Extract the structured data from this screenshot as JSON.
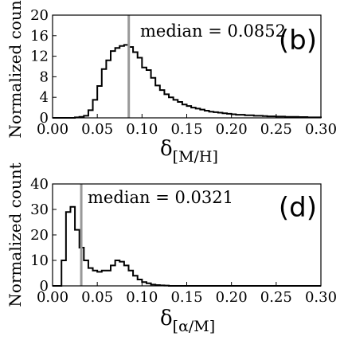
{
  "chart_data": [
    {
      "type": "histogram",
      "panel_label": "(b)",
      "ylabel": "Normalized count",
      "xlabel_main": "δ",
      "xlabel_sub": "[M/H]",
      "xlim": [
        0.0,
        0.3
      ],
      "ylim": [
        0,
        20
      ],
      "xticks": [
        "0.00",
        "0.05",
        "0.10",
        "0.15",
        "0.20",
        "0.25",
        "0.30"
      ],
      "yticks": [
        "0",
        "4",
        "8",
        "12",
        "16",
        "20"
      ],
      "bin_width": 0.005,
      "bin_start": 0.0,
      "values": [
        0,
        0,
        0,
        0,
        0,
        0.1,
        0.2,
        0.4,
        1.5,
        3.5,
        6.2,
        9.5,
        11.2,
        13.0,
        13.6,
        14.0,
        14.2,
        13.8,
        12.8,
        11.7,
        9.8,
        9.3,
        7.8,
        6.3,
        5.4,
        4.6,
        4.0,
        3.5,
        3.1,
        2.6,
        2.3,
        2.0,
        1.8,
        1.6,
        1.4,
        1.2,
        1.1,
        1.0,
        0.9,
        0.8,
        0.7,
        0.6,
        0.6,
        0.5,
        0.5,
        0.4,
        0.4,
        0.35,
        0.3,
        0.3,
        0.25,
        0.25,
        0.2,
        0.2,
        0.2,
        0.15,
        0.15,
        0.1,
        0.1,
        0.1
      ],
      "median": 0.0852,
      "median_label": "median = 0.0852",
      "line_color": "#000000",
      "median_color": "#999999"
    },
    {
      "type": "histogram",
      "panel_label": "(d)",
      "ylabel": "Normalized count",
      "xlabel_main": "δ",
      "xlabel_sub": "[α/M]",
      "xlim": [
        0.0,
        0.3
      ],
      "ylim": [
        0,
        40
      ],
      "xticks": [
        "0.00",
        "0.05",
        "0.10",
        "0.15",
        "0.20",
        "0.25",
        "0.30"
      ],
      "yticks": [
        "0",
        "10",
        "20",
        "30",
        "40"
      ],
      "bin_width": 0.005,
      "bin_start": 0.0,
      "values": [
        0,
        0,
        10,
        29,
        31,
        22,
        15,
        10,
        7,
        6,
        5.5,
        6,
        6,
        8,
        10,
        9.5,
        8,
        6,
        4,
        2.5,
        1.5,
        1,
        0.5,
        0.3,
        0.2,
        0.1,
        0,
        0,
        0,
        0,
        0,
        0,
        0,
        0,
        0,
        0,
        0,
        0,
        0,
        0,
        0,
        0,
        0,
        0,
        0,
        0,
        0,
        0,
        0,
        0,
        0,
        0,
        0,
        0,
        0,
        0,
        0,
        0,
        0,
        0
      ],
      "median": 0.0321,
      "median_label": "median = 0.0321",
      "line_color": "#000000",
      "median_color": "#999999"
    }
  ]
}
